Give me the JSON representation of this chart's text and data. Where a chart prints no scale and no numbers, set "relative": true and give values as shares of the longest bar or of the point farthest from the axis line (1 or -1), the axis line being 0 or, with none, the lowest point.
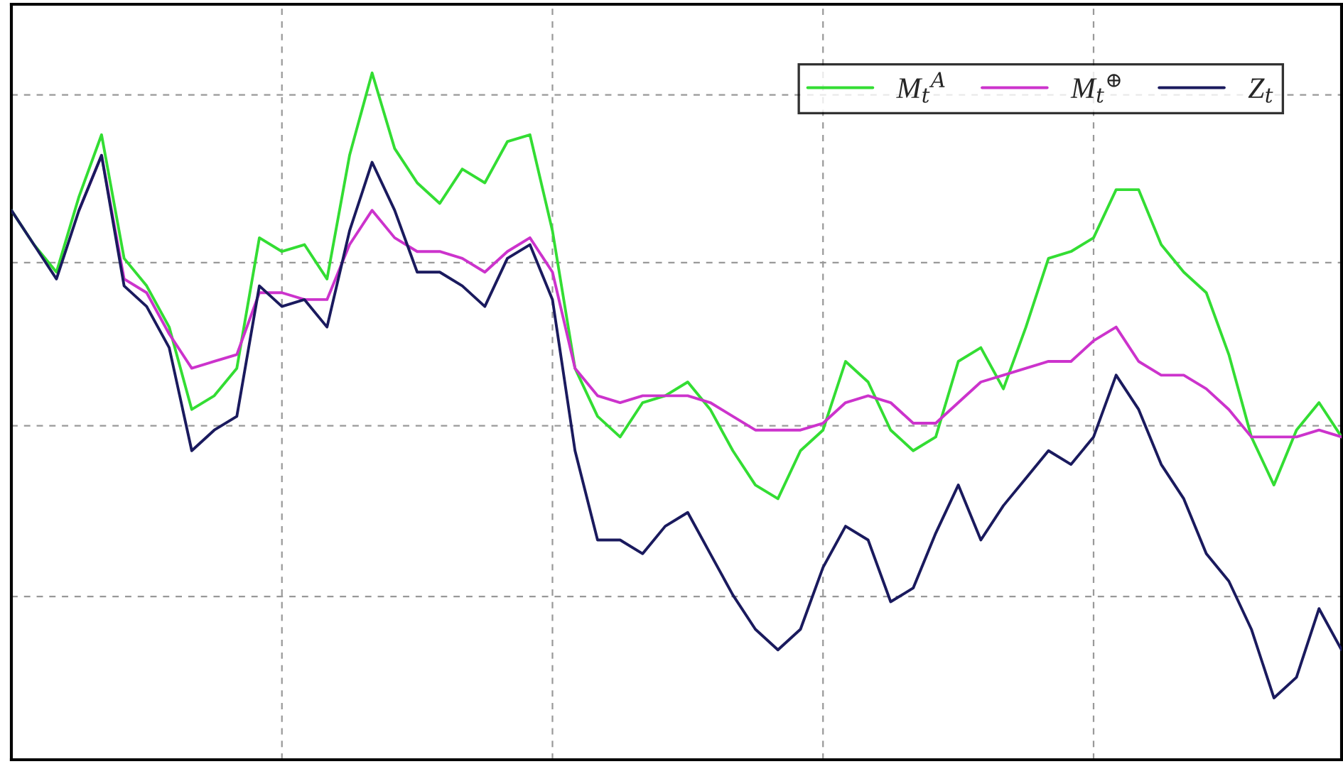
{
  "chart_data": {
    "type": "line",
    "relative": true,
    "grid": true,
    "legend": "top right",
    "line_style": "solid",
    "marker": "none",
    "categories": [
      null,
      null,
      null,
      null,
      null,
      null,
      null,
      null,
      null,
      null,
      null,
      null,
      null,
      null,
      null,
      null,
      null,
      null,
      null,
      null,
      null,
      null,
      null,
      null,
      null,
      null,
      null,
      null,
      null,
      null,
      null,
      null,
      null,
      null,
      null,
      null,
      null,
      null,
      null,
      null,
      null,
      null,
      null,
      null,
      null,
      null,
      null,
      null,
      null,
      null,
      null,
      null,
      null,
      null,
      null,
      null,
      null,
      null,
      null,
      null
    ],
    "series": [
      {
        "name": "M$_{t}$$^{A}$",
        "color": "#33dd33",
        "values": [
          0.8,
          0.75,
          0.71,
          0.82,
          0.91,
          0.73,
          0.69,
          0.63,
          0.51,
          0.53,
          0.57,
          0.76,
          0.74,
          0.75,
          0.7,
          0.88,
          1.0,
          0.89,
          0.84,
          0.81,
          0.86,
          0.84,
          0.9,
          0.91,
          0.77,
          0.57,
          0.5,
          0.47,
          0.52,
          0.53,
          0.55,
          0.51,
          0.45,
          0.4,
          0.38,
          0.45,
          0.48,
          0.58,
          0.55,
          0.48,
          0.45,
          0.47,
          0.58,
          0.6,
          0.54,
          0.63,
          0.73,
          0.74,
          0.76,
          0.83,
          0.83,
          0.75,
          0.71,
          0.68,
          0.59,
          0.47,
          0.4,
          0.48,
          0.52,
          0.47
        ]
      },
      {
        "name": "M$_{t}$$^{⊕}$",
        "color": "#cc33cc",
        "values": [
          null,
          null,
          null,
          0.8,
          0.88,
          0.7,
          0.68,
          0.62,
          0.57,
          0.58,
          0.59,
          0.68,
          0.68,
          0.67,
          0.67,
          0.75,
          0.8,
          0.76,
          0.74,
          0.74,
          0.73,
          0.71,
          0.74,
          0.76,
          0.71,
          0.57,
          0.53,
          0.52,
          0.53,
          0.53,
          0.53,
          0.52,
          0.5,
          0.48,
          0.48,
          0.48,
          0.49,
          0.52,
          0.53,
          0.52,
          0.49,
          0.49,
          0.52,
          0.55,
          0.56,
          0.57,
          0.58,
          0.58,
          0.61,
          0.63,
          0.58,
          0.56,
          0.56,
          0.54,
          0.51,
          0.47,
          0.47,
          0.47,
          0.48,
          0.47
        ]
      },
      {
        "name": "Z$_{t}$",
        "color": "#1a1a5e",
        "values": [
          0.8,
          0.75,
          0.7,
          0.8,
          0.88,
          0.69,
          0.66,
          0.6,
          0.45,
          0.48,
          0.5,
          0.69,
          0.66,
          0.67,
          0.63,
          0.77,
          0.87,
          0.8,
          0.71,
          0.71,
          0.69,
          0.66,
          0.73,
          0.75,
          0.67,
          0.45,
          0.32,
          0.32,
          0.3,
          0.34,
          0.36,
          0.3,
          0.24,
          0.19,
          0.16,
          0.19,
          0.28,
          0.34,
          0.32,
          0.23,
          0.25,
          0.33,
          0.4,
          0.32,
          0.37,
          0.41,
          0.45,
          0.43,
          0.47,
          0.56,
          0.51,
          0.43,
          0.38,
          0.3,
          0.26,
          0.19,
          0.09,
          0.12,
          0.22,
          0.16
        ]
      }
    ]
  }
}
